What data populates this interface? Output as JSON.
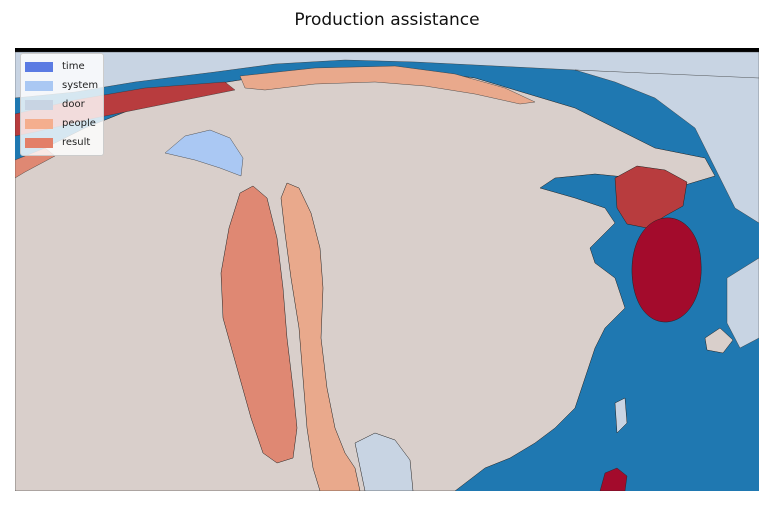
{
  "title": "Production assistance",
  "legend": [
    {
      "label": "time",
      "color": "#5b7be3"
    },
    {
      "label": "system",
      "color": "#aac8f3"
    },
    {
      "label": "door",
      "color": "#c8d4e3"
    },
    {
      "label": "people",
      "color": "#f4ae8e"
    },
    {
      "label": "result",
      "color": "#e37f68"
    }
  ],
  "palette": {
    "ocean": "#1f78b1",
    "land": "#d9cfcb",
    "light_land": "#c8d4e3",
    "dark_red": "#a30b2c",
    "red": "#b83c3e",
    "salmon": "#df8873",
    "peach": "#e9a98c",
    "light_blue": "#aac8f3"
  }
}
